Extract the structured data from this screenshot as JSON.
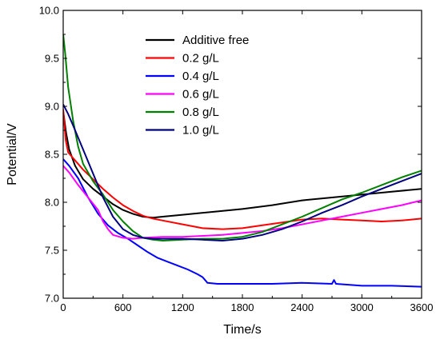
{
  "chart_data": {
    "type": "line",
    "xlabel": "Time/s",
    "ylabel": "Potential/V",
    "xlim": [
      0,
      3600
    ],
    "ylim": [
      7.0,
      10.0
    ],
    "xticks": [
      0,
      600,
      1200,
      1800,
      2400,
      3000,
      3600
    ],
    "xtick_labels": [
      "0",
      "600",
      "1200",
      "1800",
      "2400",
      "3000",
      "3600"
    ],
    "yticks": [
      7.0,
      7.5,
      8.0,
      8.5,
      9.0,
      9.5,
      10.0
    ],
    "ytick_labels": [
      "7.0",
      "7.5",
      "8.0",
      "8.5",
      "9.0",
      "9.5",
      "10.0"
    ],
    "grid": false,
    "legend_position": "top-center",
    "series": [
      {
        "name": "Additive free",
        "color": "#000000",
        "points": [
          [
            0,
            8.95
          ],
          [
            30,
            8.72
          ],
          [
            60,
            8.55
          ],
          [
            120,
            8.38
          ],
          [
            200,
            8.24
          ],
          [
            300,
            8.14
          ],
          [
            400,
            8.06
          ],
          [
            500,
            7.98
          ],
          [
            600,
            7.92
          ],
          [
            700,
            7.88
          ],
          [
            800,
            7.85
          ],
          [
            900,
            7.84
          ],
          [
            1000,
            7.85
          ],
          [
            1200,
            7.87
          ],
          [
            1500,
            7.9
          ],
          [
            1800,
            7.93
          ],
          [
            2100,
            7.97
          ],
          [
            2400,
            8.02
          ],
          [
            2700,
            8.05
          ],
          [
            3000,
            8.08
          ],
          [
            3300,
            8.11
          ],
          [
            3600,
            8.14
          ]
        ]
      },
      {
        "name": "0.2 g/L",
        "color": "#ff0000",
        "points": [
          [
            0,
            8.97
          ],
          [
            25,
            8.65
          ],
          [
            50,
            8.52
          ],
          [
            100,
            8.46
          ],
          [
            200,
            8.34
          ],
          [
            300,
            8.24
          ],
          [
            400,
            8.14
          ],
          [
            500,
            8.05
          ],
          [
            600,
            7.97
          ],
          [
            700,
            7.91
          ],
          [
            800,
            7.86
          ],
          [
            900,
            7.83
          ],
          [
            1000,
            7.81
          ],
          [
            1200,
            7.77
          ],
          [
            1400,
            7.73
          ],
          [
            1600,
            7.72
          ],
          [
            1800,
            7.73
          ],
          [
            2000,
            7.76
          ],
          [
            2200,
            7.79
          ],
          [
            2400,
            7.82
          ],
          [
            2600,
            7.83
          ],
          [
            2800,
            7.82
          ],
          [
            3000,
            7.81
          ],
          [
            3200,
            7.8
          ],
          [
            3400,
            7.81
          ],
          [
            3600,
            7.83
          ]
        ]
      },
      {
        "name": "0.4 g/L",
        "color": "#0000ff",
        "points": [
          [
            0,
            8.45
          ],
          [
            60,
            8.38
          ],
          [
            150,
            8.25
          ],
          [
            250,
            8.05
          ],
          [
            350,
            7.88
          ],
          [
            450,
            7.76
          ],
          [
            550,
            7.68
          ],
          [
            650,
            7.62
          ],
          [
            750,
            7.55
          ],
          [
            850,
            7.48
          ],
          [
            950,
            7.42
          ],
          [
            1050,
            7.38
          ],
          [
            1150,
            7.34
          ],
          [
            1250,
            7.3
          ],
          [
            1350,
            7.25
          ],
          [
            1400,
            7.22
          ],
          [
            1450,
            7.16
          ],
          [
            1550,
            7.15
          ],
          [
            1800,
            7.15
          ],
          [
            2100,
            7.15
          ],
          [
            2400,
            7.16
          ],
          [
            2700,
            7.15
          ],
          [
            2720,
            7.19
          ],
          [
            2740,
            7.15
          ],
          [
            3000,
            7.13
          ],
          [
            3300,
            7.13
          ],
          [
            3600,
            7.12
          ]
        ]
      },
      {
        "name": "0.6 g/L",
        "color": "#ff00ff",
        "points": [
          [
            0,
            8.38
          ],
          [
            60,
            8.31
          ],
          [
            150,
            8.18
          ],
          [
            250,
            8.05
          ],
          [
            350,
            7.92
          ],
          [
            400,
            7.8
          ],
          [
            450,
            7.72
          ],
          [
            500,
            7.66
          ],
          [
            600,
            7.63
          ],
          [
            700,
            7.62
          ],
          [
            800,
            7.63
          ],
          [
            1000,
            7.64
          ],
          [
            1200,
            7.64
          ],
          [
            1400,
            7.65
          ],
          [
            1600,
            7.66
          ],
          [
            1800,
            7.68
          ],
          [
            2000,
            7.7
          ],
          [
            2200,
            7.73
          ],
          [
            2400,
            7.77
          ],
          [
            2600,
            7.81
          ],
          [
            2800,
            7.85
          ],
          [
            3000,
            7.89
          ],
          [
            3200,
            7.93
          ],
          [
            3400,
            7.97
          ],
          [
            3600,
            8.02
          ]
        ]
      },
      {
        "name": "0.8 g/L",
        "color": "#008000",
        "points": [
          [
            0,
            9.75
          ],
          [
            20,
            9.55
          ],
          [
            50,
            9.2
          ],
          [
            100,
            8.85
          ],
          [
            150,
            8.58
          ],
          [
            200,
            8.4
          ],
          [
            300,
            8.22
          ],
          [
            400,
            8.08
          ],
          [
            500,
            7.92
          ],
          [
            600,
            7.8
          ],
          [
            700,
            7.7
          ],
          [
            800,
            7.63
          ],
          [
            900,
            7.61
          ],
          [
            1000,
            7.6
          ],
          [
            1200,
            7.61
          ],
          [
            1400,
            7.62
          ],
          [
            1600,
            7.62
          ],
          [
            1800,
            7.64
          ],
          [
            2000,
            7.69
          ],
          [
            2200,
            7.77
          ],
          [
            2400,
            7.85
          ],
          [
            2600,
            7.94
          ],
          [
            2800,
            8.03
          ],
          [
            3000,
            8.1
          ],
          [
            3200,
            8.18
          ],
          [
            3400,
            8.26
          ],
          [
            3600,
            8.33
          ]
        ]
      },
      {
        "name": "1.0 g/L",
        "color": "#000080",
        "points": [
          [
            0,
            9.02
          ],
          [
            50,
            8.92
          ],
          [
            100,
            8.8
          ],
          [
            200,
            8.55
          ],
          [
            300,
            8.3
          ],
          [
            400,
            8.05
          ],
          [
            500,
            7.85
          ],
          [
            600,
            7.72
          ],
          [
            700,
            7.66
          ],
          [
            800,
            7.63
          ],
          [
            900,
            7.62
          ],
          [
            1000,
            7.62
          ],
          [
            1200,
            7.62
          ],
          [
            1400,
            7.61
          ],
          [
            1600,
            7.6
          ],
          [
            1800,
            7.62
          ],
          [
            2000,
            7.66
          ],
          [
            2200,
            7.72
          ],
          [
            2400,
            7.8
          ],
          [
            2600,
            7.89
          ],
          [
            2800,
            7.97
          ],
          [
            3000,
            8.06
          ],
          [
            3200,
            8.14
          ],
          [
            3400,
            8.22
          ],
          [
            3600,
            8.3
          ]
        ]
      }
    ]
  }
}
